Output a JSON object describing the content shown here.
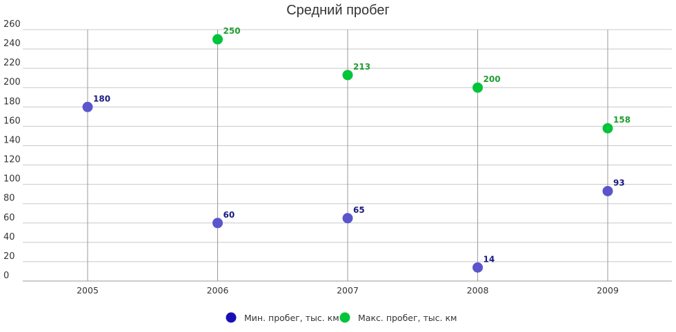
{
  "chart_data": {
    "type": "scatter",
    "title": "Средний пробег",
    "xlabel": "",
    "ylabel": "",
    "categories": [
      "2005",
      "2006",
      "2007",
      "2008",
      "2009"
    ],
    "ylim": [
      0,
      260
    ],
    "yticks": [
      0,
      20,
      40,
      60,
      80,
      100,
      120,
      140,
      160,
      180,
      200,
      220,
      240,
      260
    ],
    "grid": true,
    "legend": "bottom-center",
    "series": [
      {
        "name": "Мин. пробег, тыс. км",
        "color": "#1a0fb5",
        "marker_color": "#5b55cc",
        "label_color": "#1a1a80",
        "points": [
          {
            "x": "2005",
            "y": 180
          },
          {
            "x": "2006",
            "y": 60
          },
          {
            "x": "2007",
            "y": 65
          },
          {
            "x": "2008",
            "y": 14
          },
          {
            "x": "2009",
            "y": 93
          }
        ]
      },
      {
        "name": "Макс. пробег, тыс. км",
        "color": "#00c43a",
        "marker_color": "#00c43a",
        "label_color": "#1e9e2e",
        "points": [
          {
            "x": "2006",
            "y": 250
          },
          {
            "x": "2007",
            "y": 213
          },
          {
            "x": "2008",
            "y": 200
          },
          {
            "x": "2009",
            "y": 158
          }
        ]
      }
    ]
  }
}
